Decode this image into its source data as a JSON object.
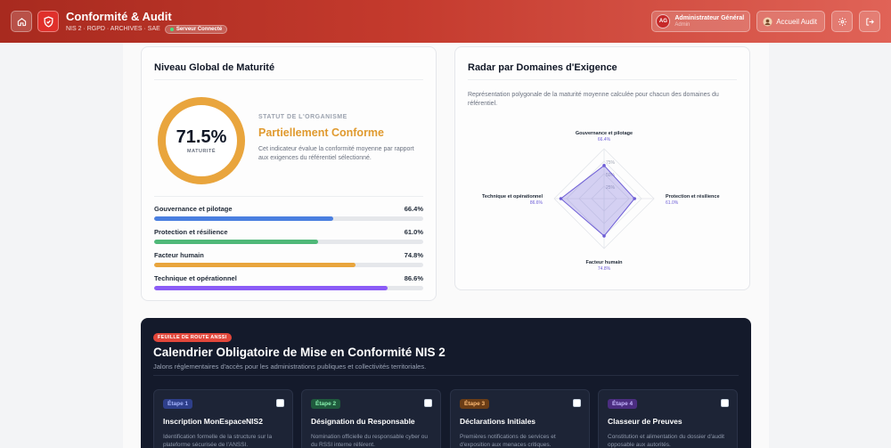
{
  "header": {
    "title": "Conformité & Audit",
    "subtitle": "NIS 2 · RGPD · ARCHIVES · SAE",
    "status_badge": "Serveur Connecté",
    "user": {
      "initials": "AG",
      "name": "Administrateur Général",
      "role": "Admin"
    },
    "audit_button": "Accueil Audit",
    "icons": [
      "home-icon",
      "shield-check-icon",
      "gear-icon",
      "logout-icon",
      "user-icon"
    ],
    "colors": {
      "primary": "#c43a2d",
      "accent_light": "#e06357"
    }
  },
  "maturity": {
    "title": "Niveau Global de Maturité",
    "score": "71.5%",
    "score_value": 71.5,
    "score_label": "MATURITÉ",
    "org_status_label": "STATUT DE L'ORGANISME",
    "org_status_value": "Partiellement Conforme",
    "description": "Cet indicateur évalue la conformité moyenne par rapport aux exigences du référentiel sélectionné.",
    "domains": [
      {
        "label": "Gouvernance et pilotage",
        "value": "66.4%",
        "percent": 66.4,
        "color": "#4a7fe0"
      },
      {
        "label": "Protection et résilience",
        "value": "61.0%",
        "percent": 61.0,
        "color": "#4fb878"
      },
      {
        "label": "Facteur humain",
        "value": "74.8%",
        "percent": 74.8,
        "color": "#e9a53d"
      },
      {
        "label": "Technique et opérationnel",
        "value": "86.6%",
        "percent": 86.6,
        "color": "#8b5cf6"
      }
    ]
  },
  "radar": {
    "title": "Radar par Domaines d'Exigence",
    "description": "Représentation polygonale de la maturité moyenne calculée pour chacun des domaines du référentiel.",
    "ring_labels": [
      "75%",
      "50%",
      "25%"
    ],
    "color": "#6d5dd6"
  },
  "roadmap": {
    "badge": "FEUILLE DE ROUTE ANSSI",
    "title": "Calendrier Obligatoire de Mise en Conformité NIS 2",
    "subtitle": "Jalons réglementaires d'accès pour les administrations publiques et collectivités territoriales.",
    "steps": [
      {
        "label": "Étape 1",
        "title": "Inscription MonEspaceNIS2",
        "description": "Identification formelle de la structure sur la plateforme sécurisée de l'ANSSI.",
        "badge_bg": "#2e3f8a",
        "badge_fg": "#a5b4fc"
      },
      {
        "label": "Étape 2",
        "title": "Désignation du Responsable",
        "description": "Nomination officielle du responsable cyber ou du RSSI interne référent.",
        "badge_bg": "#1f5a3d",
        "badge_fg": "#86efac"
      },
      {
        "label": "Étape 3",
        "title": "Déclarations Initiales",
        "description": "Premières notifications de services et d'exposition aux menaces critiques.",
        "badge_bg": "#6b3d16",
        "badge_fg": "#fdba74"
      },
      {
        "label": "Étape 4",
        "title": "Classeur de Preuves",
        "description": "Constitution et alimentation du dossier d'audit opposable aux autorités.",
        "badge_bg": "#4b2d80",
        "badge_fg": "#c4b5fd"
      }
    ]
  }
}
